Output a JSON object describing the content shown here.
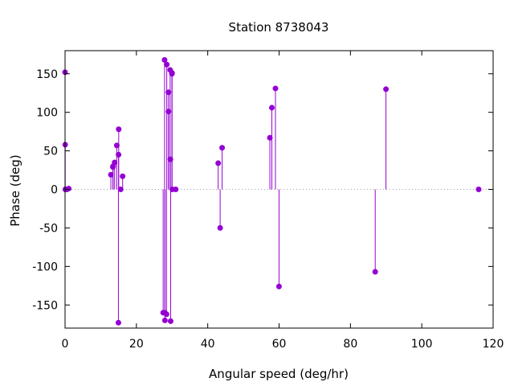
{
  "chart_data": {
    "type": "scatter",
    "style": "impulses-with-points",
    "title": "Station 8738043",
    "xlabel": "Angular speed (deg/hr)",
    "ylabel": "Phase (deg)",
    "xlim": [
      0,
      120
    ],
    "ylim": [
      -180,
      180
    ],
    "xticks": [
      0,
      20,
      40,
      60,
      80,
      100,
      120
    ],
    "xtick_labels": [
      "0",
      "20",
      "40",
      "60",
      "80",
      "100",
      "120"
    ],
    "yticks": [
      -150,
      -100,
      -50,
      0,
      50,
      100,
      150
    ],
    "ytick_labels": [
      "-150",
      "-100",
      "-50",
      "0",
      "50",
      "100",
      "150"
    ],
    "grid": false,
    "zero_line": true,
    "color": "#9400d3",
    "series": [
      {
        "points": [
          {
            "x": 0.0,
            "y": 152
          },
          {
            "x": 0.04,
            "y": 58
          },
          {
            "x": 0.08,
            "y": 0
          },
          {
            "x": 0.54,
            "y": 0
          },
          {
            "x": 1.02,
            "y": 1
          },
          {
            "x": 12.85,
            "y": 19
          },
          {
            "x": 13.4,
            "y": 29
          },
          {
            "x": 13.47,
            "y": 30
          },
          {
            "x": 13.9,
            "y": 35
          },
          {
            "x": 14.5,
            "y": 57
          },
          {
            "x": 14.96,
            "y": -173
          },
          {
            "x": 15.0,
            "y": 45
          },
          {
            "x": 15.04,
            "y": 78
          },
          {
            "x": 15.59,
            "y": 0
          },
          {
            "x": 16.14,
            "y": 17
          },
          {
            "x": 27.5,
            "y": -160
          },
          {
            "x": 27.9,
            "y": 168
          },
          {
            "x": 27.97,
            "y": -160
          },
          {
            "x": 28.0,
            "y": -170
          },
          {
            "x": 28.44,
            "y": -162
          },
          {
            "x": 28.51,
            "y": 162
          },
          {
            "x": 28.99,
            "y": 126
          },
          {
            "x": 29.0,
            "y": 101
          },
          {
            "x": 29.46,
            "y": 155
          },
          {
            "x": 29.53,
            "y": 39
          },
          {
            "x": 29.6,
            "y": -171
          },
          {
            "x": 29.96,
            "y": 150
          },
          {
            "x": 30.0,
            "y": 151
          },
          {
            "x": 30.08,
            "y": 0
          },
          {
            "x": 31.02,
            "y": 0
          },
          {
            "x": 42.93,
            "y": 34
          },
          {
            "x": 43.48,
            "y": -50
          },
          {
            "x": 44.03,
            "y": 54
          },
          {
            "x": 57.42,
            "y": 67
          },
          {
            "x": 57.97,
            "y": 106
          },
          {
            "x": 58.98,
            "y": 131
          },
          {
            "x": 59.98,
            "y": -126
          },
          {
            "x": 86.95,
            "y": -107
          },
          {
            "x": 89.96,
            "y": 130
          },
          {
            "x": 115.94,
            "y": 0
          }
        ]
      }
    ]
  }
}
